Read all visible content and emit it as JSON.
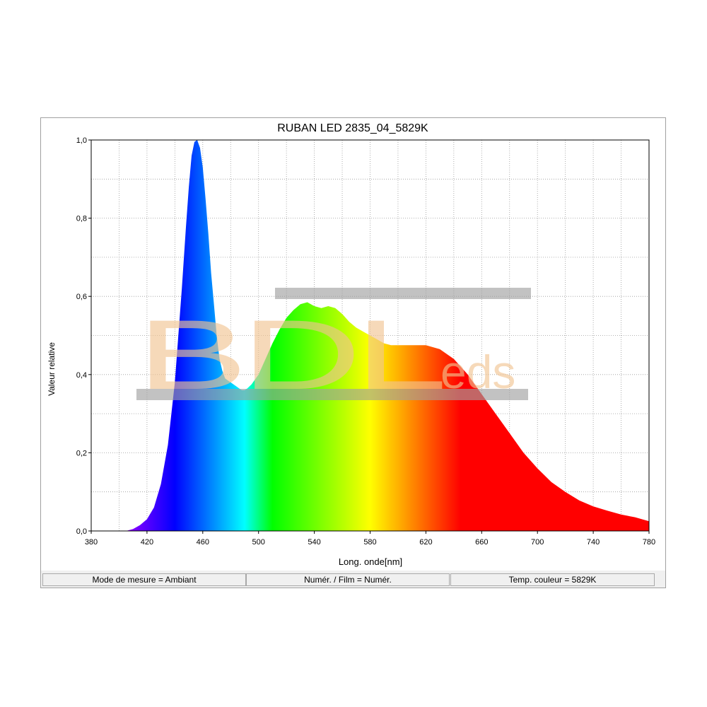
{
  "chart_data": {
    "type": "area",
    "title": "RUBAN LED 2835_04_5829K",
    "xlabel": "Long. onde[nm]",
    "ylabel": "Valeur relative",
    "xlim": [
      380,
      780
    ],
    "ylim": [
      0,
      1.0
    ],
    "x_ticks": [
      "380",
      "420",
      "460",
      "500",
      "540",
      "580",
      "620",
      "660",
      "700",
      "740",
      "780"
    ],
    "y_ticks": [
      "0,0",
      "0,2",
      "0,4",
      "0,6",
      "0,8",
      "1,0"
    ],
    "grid": true,
    "fill": "visible-spectrum gradient",
    "series": [
      {
        "x": [
          405,
          410,
          415,
          420,
          425,
          430,
          435,
          440,
          445,
          448,
          450,
          452,
          454,
          456,
          458,
          460,
          462,
          464,
          466,
          468,
          470,
          472,
          474,
          476,
          478,
          480,
          482,
          484,
          486,
          488,
          490,
          492,
          495,
          500,
          505,
          510,
          515,
          520,
          525,
          530,
          535,
          540,
          545,
          550,
          555,
          560,
          565,
          570,
          575,
          580,
          585,
          590,
          595,
          600,
          610,
          620,
          630,
          640,
          650,
          660,
          670,
          680,
          690,
          700,
          710,
          720,
          730,
          740,
          750,
          760,
          770,
          780
        ],
        "y": [
          0.0,
          0.005,
          0.015,
          0.03,
          0.06,
          0.12,
          0.22,
          0.38,
          0.62,
          0.78,
          0.88,
          0.96,
          0.995,
          1.0,
          0.98,
          0.93,
          0.85,
          0.76,
          0.66,
          0.58,
          0.5,
          0.44,
          0.41,
          0.39,
          0.385,
          0.38,
          0.375,
          0.37,
          0.365,
          0.36,
          0.36,
          0.365,
          0.375,
          0.4,
          0.44,
          0.48,
          0.515,
          0.545,
          0.565,
          0.58,
          0.585,
          0.575,
          0.57,
          0.575,
          0.57,
          0.555,
          0.535,
          0.52,
          0.51,
          0.5,
          0.49,
          0.48,
          0.475,
          0.475,
          0.475,
          0.475,
          0.465,
          0.44,
          0.4,
          0.35,
          0.3,
          0.25,
          0.2,
          0.16,
          0.125,
          0.1,
          0.078,
          0.063,
          0.052,
          0.042,
          0.035,
          0.025
        ]
      }
    ]
  },
  "watermark": {
    "text": "BDLeds",
    "color": "#f2c491"
  },
  "status": {
    "mode": "Mode de mesure = Ambiant",
    "numer": "Numér. / Film = Numér.",
    "temp": "Temp. couleur = 5829K"
  }
}
